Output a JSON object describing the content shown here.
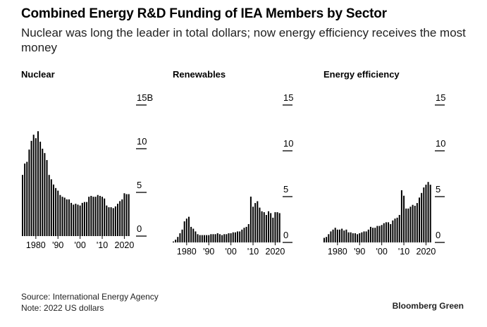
{
  "title": "Combined Energy R&D Funding of IEA Members by Sector",
  "subtitle": "Nuclear was long the leader in total dollars; now energy efficiency receives the most money",
  "source": "Source: International Energy Agency",
  "note": "Note: 2022 US dollars",
  "brand": "Bloomberg Green",
  "chart_data": [
    {
      "type": "bar",
      "title": "Nuclear",
      "unit": "B",
      "ylim": [
        0,
        15
      ],
      "yticks": [
        {
          "value": 15,
          "label": "15B"
        },
        {
          "value": 10,
          "label": "10"
        },
        {
          "value": 5,
          "label": "5"
        },
        {
          "value": 0,
          "label": "0"
        }
      ],
      "xticks": [
        {
          "value": 1980,
          "label": "1980"
        },
        {
          "value": 1990,
          "label": "'90"
        },
        {
          "value": 2000,
          "label": "'00"
        },
        {
          "value": 2010,
          "label": "'10"
        },
        {
          "value": 2020,
          "label": "2020"
        }
      ],
      "x": [
        1974,
        1975,
        1976,
        1977,
        1978,
        1979,
        1980,
        1981,
        1982,
        1983,
        1984,
        1985,
        1986,
        1987,
        1988,
        1989,
        1990,
        1991,
        1992,
        1993,
        1994,
        1995,
        1996,
        1997,
        1998,
        1999,
        2000,
        2001,
        2002,
        2003,
        2004,
        2005,
        2006,
        2007,
        2008,
        2009,
        2010,
        2011,
        2012,
        2013,
        2014,
        2015,
        2016,
        2017,
        2018,
        2019,
        2020,
        2021,
        2022
      ],
      "values": [
        7.0,
        8.3,
        8.5,
        9.9,
        10.9,
        11.6,
        11.2,
        12.0,
        10.8,
        10.0,
        9.5,
        8.7,
        7.0,
        6.5,
        5.9,
        5.5,
        5.2,
        4.7,
        4.5,
        4.4,
        4.2,
        4.2,
        3.8,
        3.6,
        3.7,
        3.6,
        3.5,
        3.8,
        3.9,
        3.9,
        4.5,
        4.6,
        4.5,
        4.5,
        4.7,
        4.6,
        4.5,
        4.3,
        3.5,
        3.3,
        3.3,
        3.2,
        3.4,
        3.7,
        4.0,
        4.2,
        4.9,
        4.8,
        4.8
      ],
      "series_color": "#000000"
    },
    {
      "type": "bar",
      "title": "Renewables",
      "ylim": [
        0,
        15
      ],
      "yticks": [
        {
          "value": 15,
          "label": "15"
        },
        {
          "value": 10,
          "label": "10"
        },
        {
          "value": 5,
          "label": "5"
        },
        {
          "value": 0,
          "label": "0"
        }
      ],
      "xticks": [
        {
          "value": 1980,
          "label": "1980"
        },
        {
          "value": 1990,
          "label": "'90"
        },
        {
          "value": 2000,
          "label": "'00"
        },
        {
          "value": 2010,
          "label": "'10"
        },
        {
          "value": 2020,
          "label": "2020"
        }
      ],
      "x": [
        1974,
        1975,
        1976,
        1977,
        1978,
        1979,
        1980,
        1981,
        1982,
        1983,
        1984,
        1985,
        1986,
        1987,
        1988,
        1989,
        1990,
        1991,
        1992,
        1993,
        1994,
        1995,
        1996,
        1997,
        1998,
        1999,
        2000,
        2001,
        2002,
        2003,
        2004,
        2005,
        2006,
        2007,
        2008,
        2009,
        2010,
        2011,
        2012,
        2013,
        2014,
        2015,
        2016,
        2017,
        2018,
        2019,
        2020,
        2021,
        2022
      ],
      "values": [
        0.1,
        0.3,
        0.6,
        1.0,
        1.4,
        2.3,
        2.6,
        2.8,
        1.7,
        1.5,
        1.2,
        0.9,
        0.8,
        0.8,
        0.8,
        0.8,
        0.8,
        0.9,
        0.9,
        0.9,
        1.0,
        0.9,
        0.8,
        0.9,
        0.9,
        1.0,
        1.0,
        1.1,
        1.1,
        1.2,
        1.2,
        1.4,
        1.6,
        1.7,
        2.0,
        5.0,
        3.9,
        4.3,
        4.5,
        3.8,
        3.4,
        3.3,
        3.0,
        3.4,
        3.2,
        2.7,
        3.3,
        3.3,
        3.2
      ],
      "series_color": "#000000"
    },
    {
      "type": "bar",
      "title": "Energy efficiency",
      "ylim": [
        0,
        15
      ],
      "yticks": [
        {
          "value": 15,
          "label": "15"
        },
        {
          "value": 10,
          "label": "10"
        },
        {
          "value": 5,
          "label": "5"
        },
        {
          "value": 0,
          "label": "0"
        }
      ],
      "xticks": [
        {
          "value": 1980,
          "label": "1980"
        },
        {
          "value": 1990,
          "label": "'90"
        },
        {
          "value": 2000,
          "label": "'00"
        },
        {
          "value": 2010,
          "label": "'10"
        },
        {
          "value": 2020,
          "label": "2020"
        }
      ],
      "x": [
        1974,
        1975,
        1976,
        1977,
        1978,
        1979,
        1980,
        1981,
        1982,
        1983,
        1984,
        1985,
        1986,
        1987,
        1988,
        1989,
        1990,
        1991,
        1992,
        1993,
        1994,
        1995,
        1996,
        1997,
        1998,
        1999,
        2000,
        2001,
        2002,
        2003,
        2004,
        2005,
        2006,
        2007,
        2008,
        2009,
        2010,
        2011,
        2012,
        2013,
        2014,
        2015,
        2016,
        2017,
        2018,
        2019,
        2020,
        2021,
        2022
      ],
      "values": [
        0.5,
        0.6,
        0.9,
        1.2,
        1.4,
        1.6,
        1.4,
        1.4,
        1.5,
        1.3,
        1.4,
        1.1,
        1.1,
        1.0,
        1.0,
        0.9,
        1.0,
        1.1,
        1.2,
        1.2,
        1.4,
        1.7,
        1.6,
        1.6,
        1.8,
        1.8,
        1.9,
        2.1,
        2.2,
        2.2,
        2.0,
        2.4,
        2.6,
        2.7,
        3.0,
        5.7,
        5.1,
        3.7,
        3.7,
        3.9,
        4.1,
        4.0,
        4.3,
        4.9,
        5.4,
        6.0,
        6.3,
        6.6,
        6.3
      ],
      "series_color": "#000000"
    }
  ]
}
